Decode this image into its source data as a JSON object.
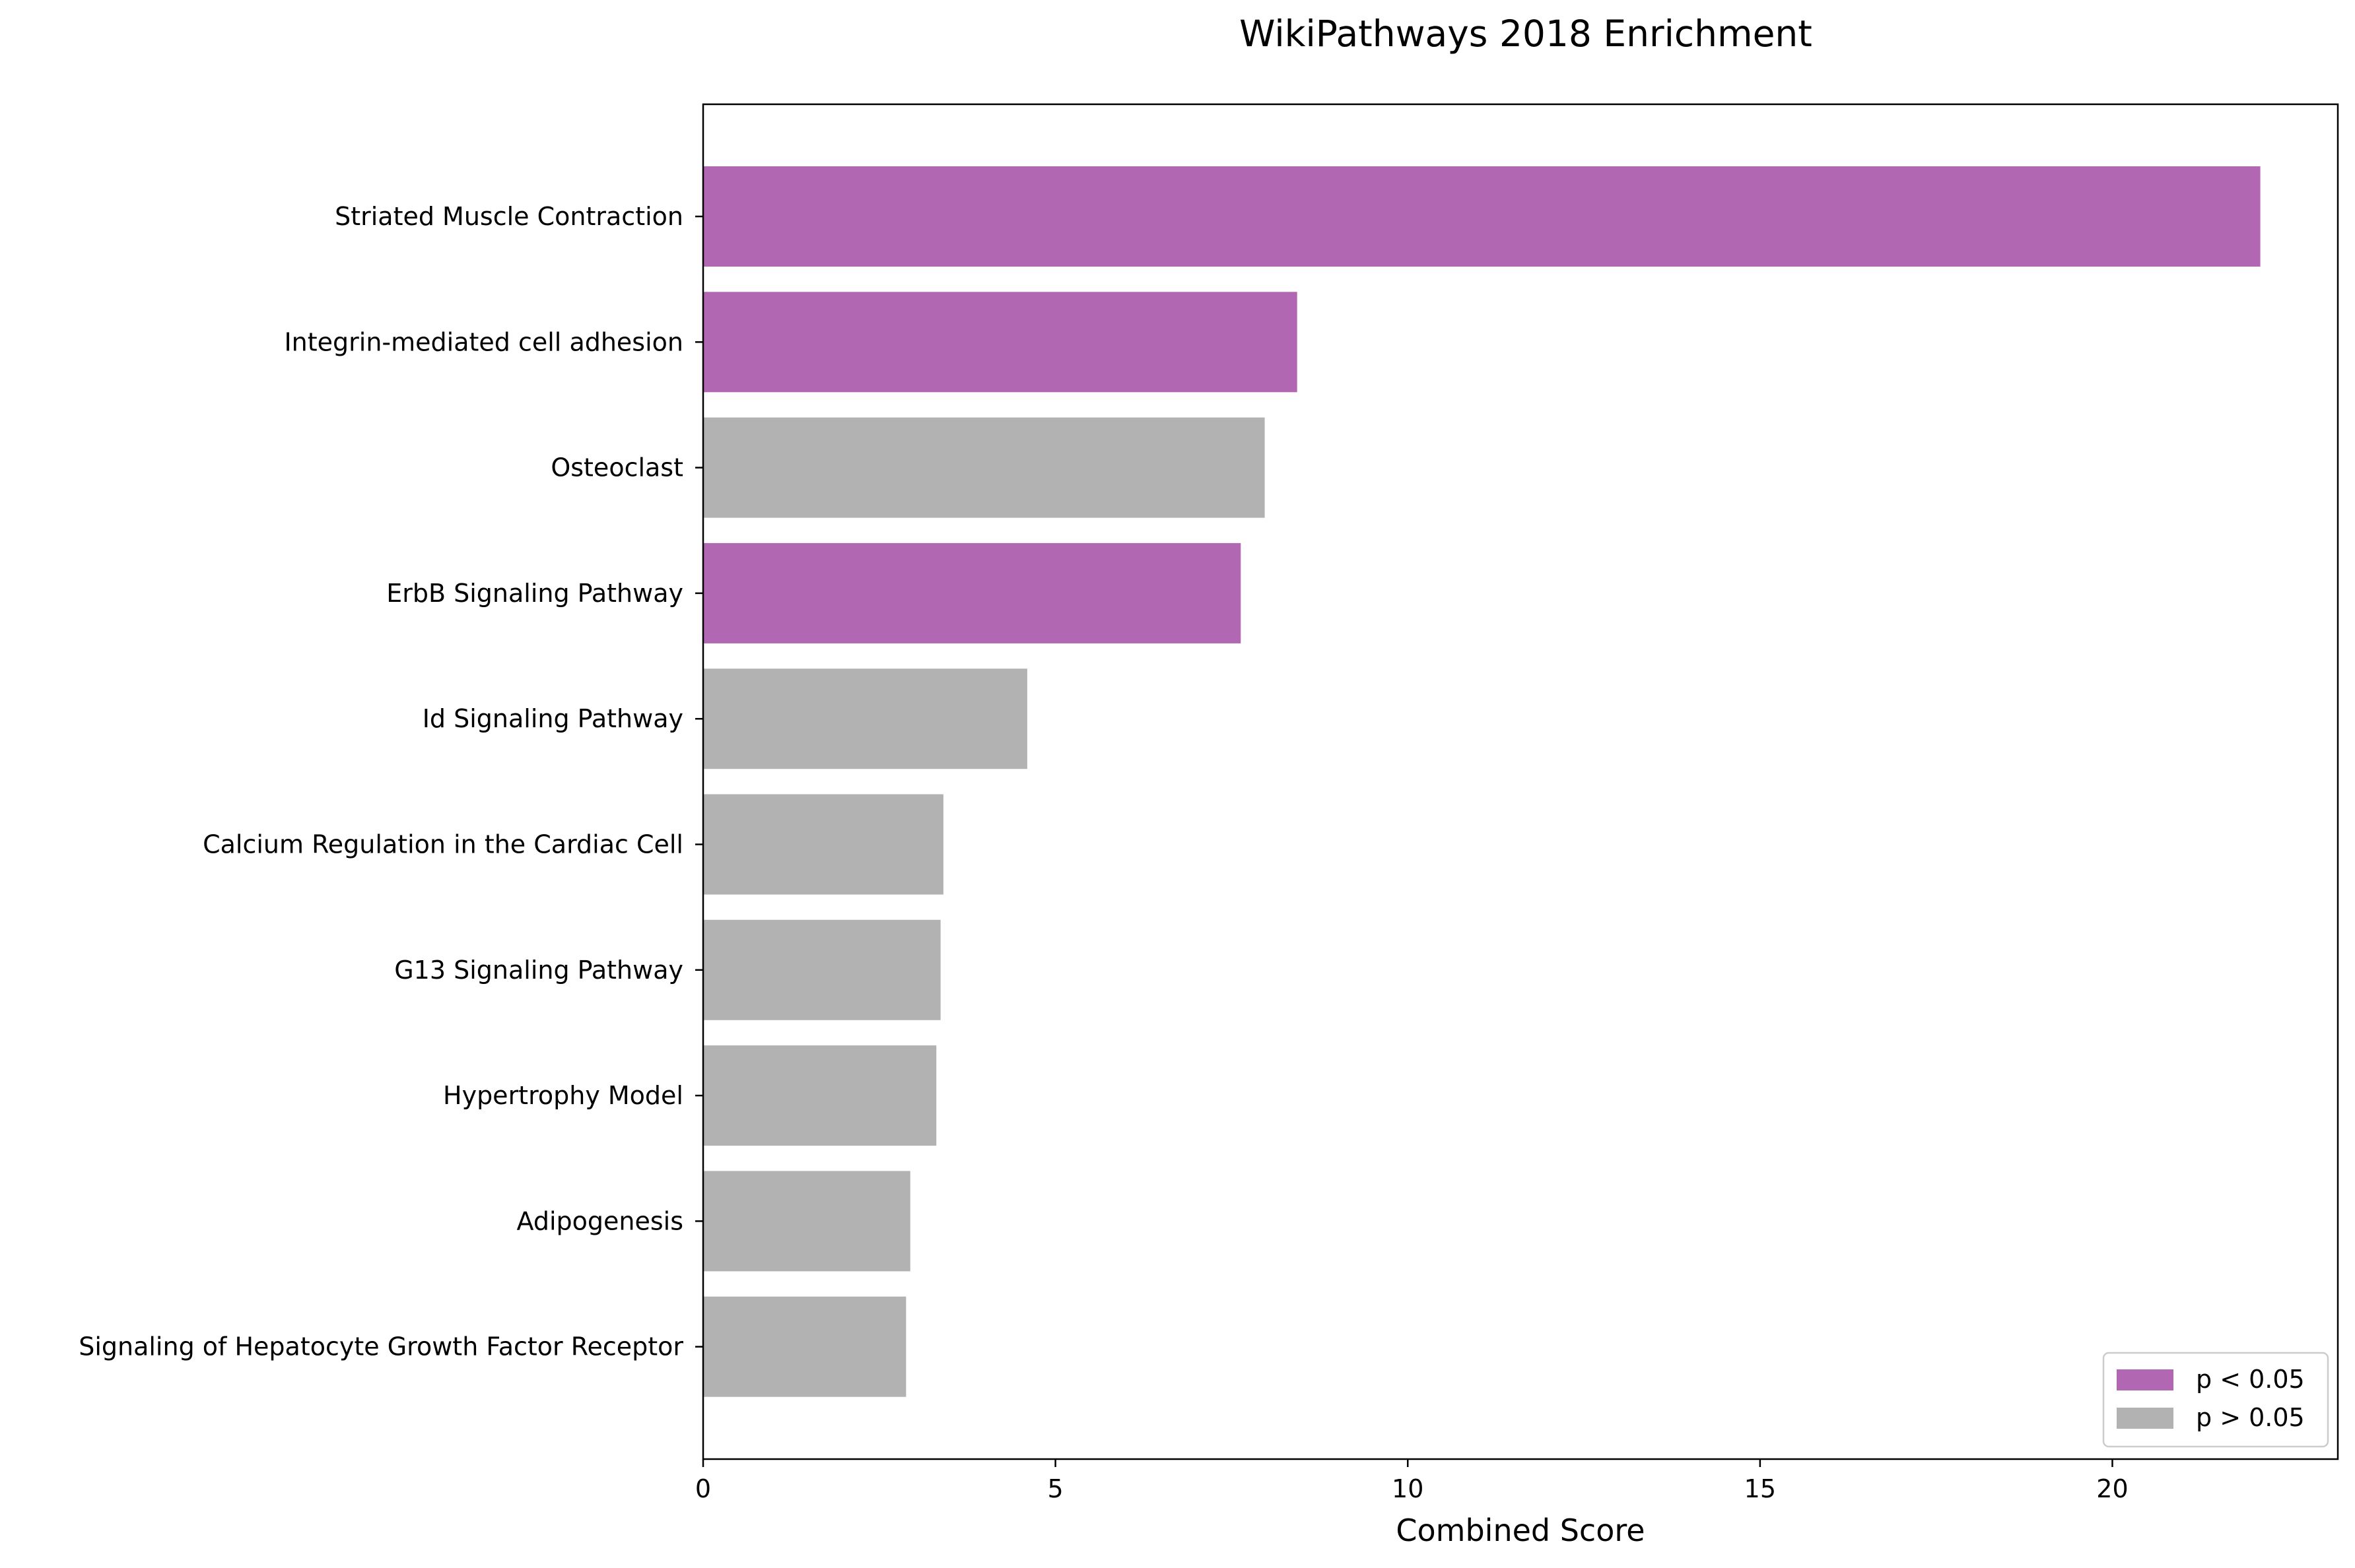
{
  "chart_data": {
    "type": "bar",
    "orientation": "horizontal",
    "title": "WikiPathways 2018 Enrichment",
    "xlabel": "Combined Score",
    "ylabel": "",
    "xlim": [
      0,
      23.2
    ],
    "xticks": [
      0,
      5,
      10,
      15,
      20
    ],
    "grid": false,
    "legend_position": "lower-right",
    "colors": {
      "significant": "#b167b1",
      "not_significant": "#b2b2b2"
    },
    "legend": [
      {
        "key": "significant",
        "label": "p < 0.05"
      },
      {
        "key": "not_significant",
        "label": "p > 0.05"
      }
    ],
    "categories": [
      "Striated Muscle Contraction",
      "Integrin-mediated cell adhesion",
      "Osteoclast",
      "ErbB Signaling Pathway",
      "Id Signaling Pathway",
      "Calcium Regulation in the Cardiac Cell",
      "G13 Signaling Pathway",
      "Hypertrophy Model",
      "Adipogenesis",
      "Signaling of Hepatocyte Growth Factor Receptor"
    ],
    "values": [
      22.1,
      8.43,
      7.97,
      7.63,
      4.6,
      3.41,
      3.37,
      3.31,
      2.94,
      2.88
    ],
    "significance": [
      "significant",
      "significant",
      "not_significant",
      "significant",
      "not_significant",
      "not_significant",
      "not_significant",
      "not_significant",
      "not_significant",
      "not_significant"
    ]
  }
}
